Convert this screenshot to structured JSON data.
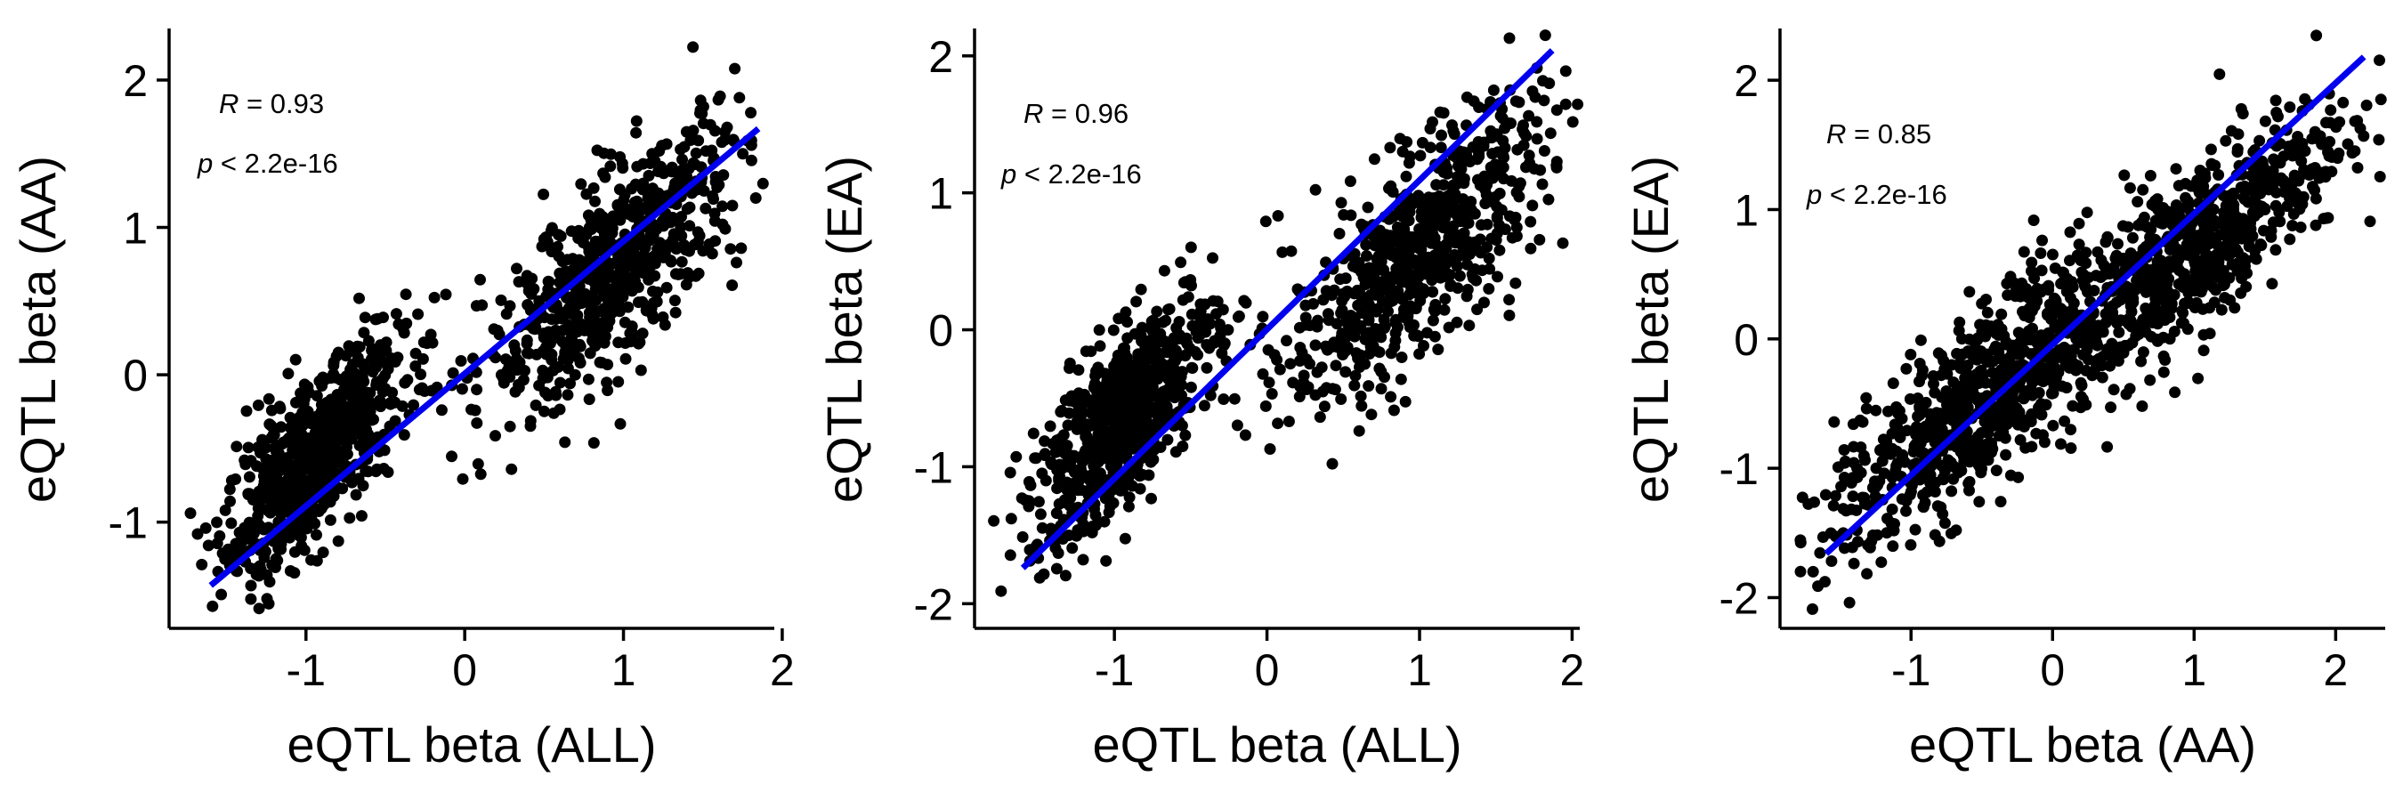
{
  "chart_data": [
    {
      "type": "scatter",
      "xlabel": "eQTL beta (ALL)",
      "ylabel": "eQTL beta (AA)",
      "xlim": [
        -1.75,
        1.95
      ],
      "ylim": [
        -1.6,
        2.35
      ],
      "x_ticks": [
        -1,
        0,
        1,
        2
      ],
      "x_tick_labels": [
        "-1",
        "0",
        "1",
        "2"
      ],
      "y_ticks": [
        -1,
        0,
        1,
        2
      ],
      "y_tick_labels": [
        "-1",
        "0",
        "1",
        "2"
      ],
      "annotation": {
        "r_symbol": "R",
        "r_text": " = 0.93",
        "p_symbol": "p",
        "p_text": " < 2.2e-16"
      },
      "fit_line": {
        "x": [
          -1.6,
          1.85
        ],
        "y": [
          -1.43,
          1.67
        ],
        "color": "#0000ee"
      },
      "cluster_summary": [
        {
          "x_range": [
            -1.55,
            -0.35
          ],
          "y_range": [
            -1.6,
            0.45
          ],
          "slope": 1.15
        },
        {
          "x_range": [
            0.1,
            1.8
          ],
          "y_range": [
            -0.5,
            1.95
          ],
          "slope": 1.0
        }
      ],
      "grid": false,
      "legend": "none"
    },
    {
      "type": "scatter",
      "xlabel": "eQTL beta (ALL)",
      "ylabel": "eQTL beta (EA)",
      "xlim": [
        -1.8,
        2.05
      ],
      "ylim": [
        -2.05,
        2.2
      ],
      "x_ticks": [
        -1,
        0,
        1,
        2
      ],
      "x_tick_labels": [
        "-1",
        "0",
        "1",
        "2"
      ],
      "y_ticks": [
        -2,
        -1,
        0,
        1,
        2
      ],
      "y_tick_labels": [
        "-2",
        "-1",
        "0",
        "1",
        "2"
      ],
      "annotation": {
        "r_symbol": "R",
        "r_text": " = 0.96",
        "p_symbol": "p",
        "p_text": " < 2.2e-16"
      },
      "fit_line": {
        "x": [
          -1.6,
          1.87
        ],
        "y": [
          -1.74,
          2.04
        ],
        "color": "#0000ee"
      },
      "cluster_summary": [
        {
          "x_range": [
            -1.6,
            -0.3
          ],
          "y_range": [
            -1.85,
            0.55
          ],
          "slope": 1.2
        },
        {
          "x_range": [
            0.1,
            1.85
          ],
          "y_range": [
            -0.85,
            1.95
          ],
          "slope": 1.05
        }
      ],
      "grid": false,
      "legend": "none"
    },
    {
      "type": "scatter",
      "xlabel": "eQTL beta (AA)",
      "ylabel": "eQTL beta (EA)",
      "xlim": [
        -1.8,
        2.35
      ],
      "ylim": [
        -2.1,
        2.4
      ],
      "x_ticks": [
        -1,
        0,
        1,
        2
      ],
      "x_tick_labels": [
        "-1",
        "0",
        "1",
        "2"
      ],
      "y_ticks": [
        -2,
        -1,
        0,
        1,
        2
      ],
      "y_tick_labels": [
        "-2",
        "-1",
        "0",
        "1",
        "2"
      ],
      "annotation": {
        "r_symbol": "R",
        "r_text": " = 0.85",
        "p_symbol": "p",
        "p_text": " < 2.2e-16"
      },
      "fit_line": {
        "x": [
          -1.6,
          2.2
        ],
        "y": [
          -1.66,
          2.18
        ],
        "color": "#0000ee"
      },
      "cluster_summary": [
        {
          "x_range": [
            -1.65,
            0.6
          ],
          "y_range": [
            -1.85,
            0.9
          ],
          "slope": 0.95
        },
        {
          "x_range": [
            -0.2,
            2.15
          ],
          "y_range": [
            -0.6,
            1.95
          ],
          "slope": 0.95
        }
      ],
      "grid": false,
      "legend": "none"
    }
  ]
}
